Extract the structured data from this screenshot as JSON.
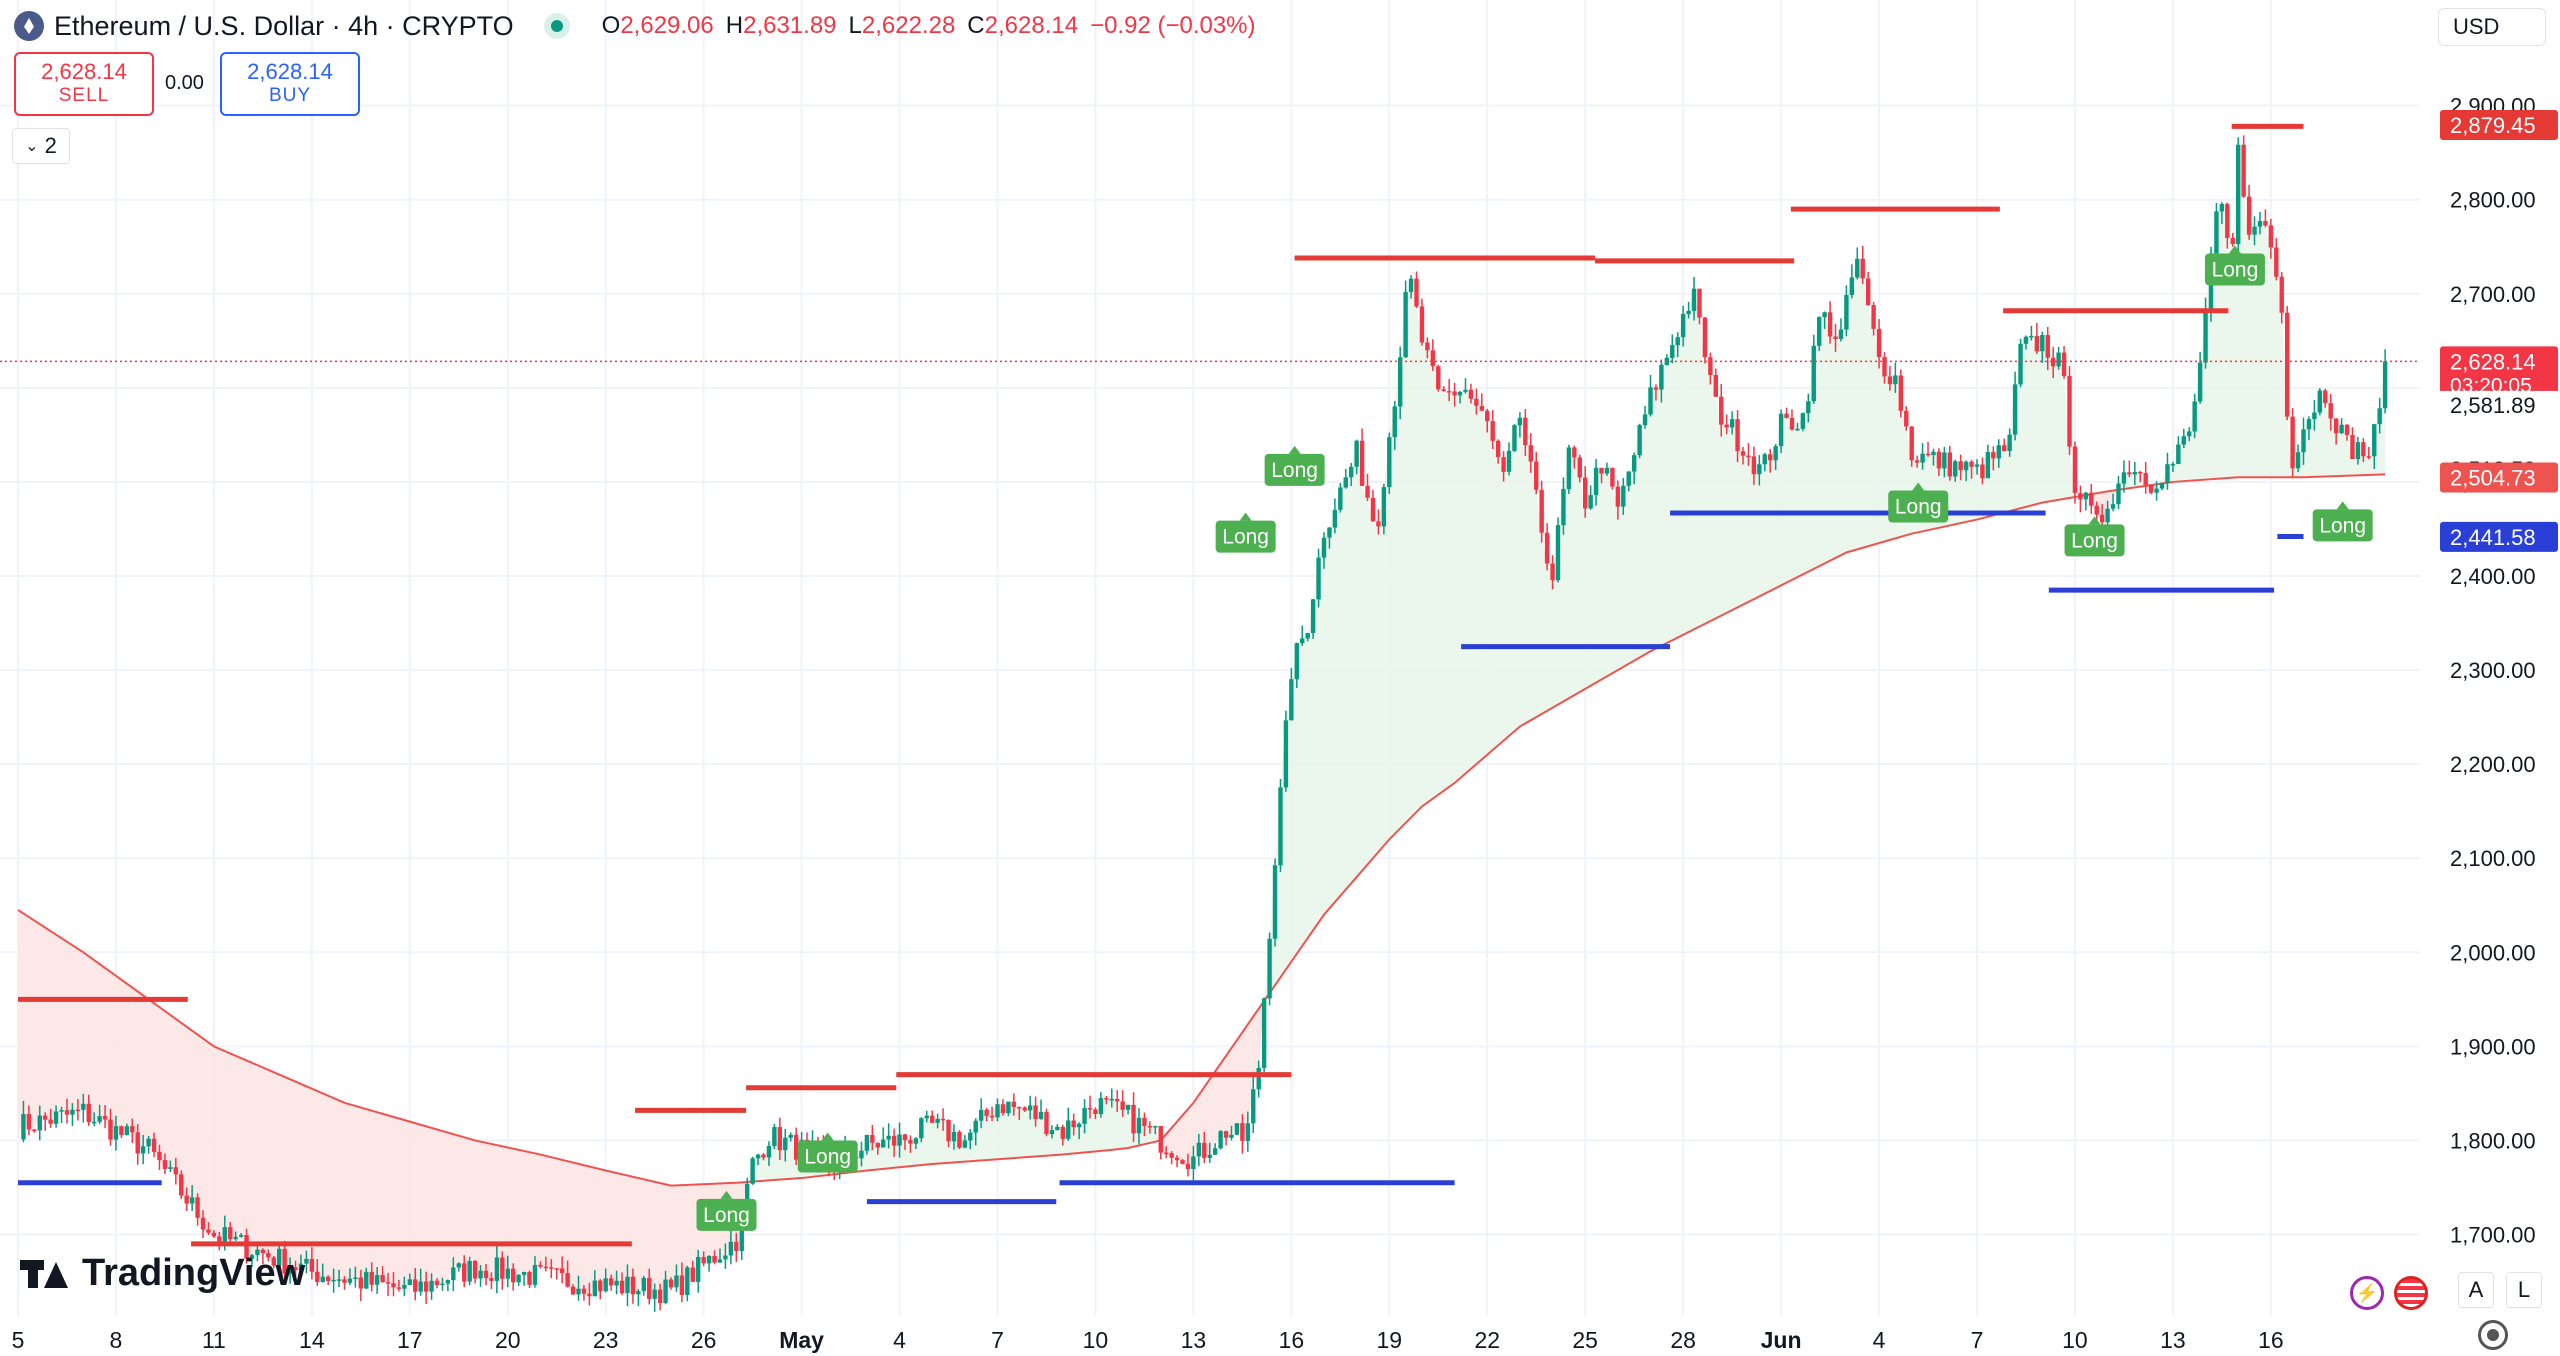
{
  "header": {
    "symbol_title": "Ethereum / U.S. Dollar · 4h · CRYPTO",
    "open_label": "O",
    "open": "2,629.06",
    "high_label": "H",
    "high": "2,631.89",
    "low_label": "L",
    "low": "2,622.28",
    "close_label": "C",
    "close": "2,628.14",
    "change": "−0.92 (−0.03%)"
  },
  "trade": {
    "sell_price": "2,628.14",
    "sell_label": "SELL",
    "spread": "0.00",
    "buy_price": "2,628.14",
    "buy_label": "BUY"
  },
  "indicators_collapse": {
    "count": "2",
    "icon": "chevron-down-icon"
  },
  "currency": "USD",
  "branding": "TradingView",
  "bottom_buttons": {
    "auto": "A",
    "log": "L"
  },
  "colors": {
    "up": "#089981",
    "down": "#f23645",
    "resistance": "#e53935",
    "support": "#2a3fd6",
    "ma": "#ef5350",
    "long_badge": "#4caf50",
    "price_line": "#f23645"
  },
  "chart_data": {
    "type": "candlestick",
    "timeframe": "4h",
    "x_ticks": [
      "5",
      "8",
      "11",
      "14",
      "17",
      "20",
      "23",
      "26",
      "May",
      "4",
      "7",
      "10",
      "13",
      "16",
      "19",
      "22",
      "25",
      "28",
      "Jun",
      "4",
      "7",
      "10",
      "13",
      "16"
    ],
    "y_ticks": [
      "1,700.00",
      "1,800.00",
      "1,900.00",
      "2,000.00",
      "2,100.00",
      "2,200.00",
      "2,300.00",
      "2,400.00",
      "2,500.00",
      "2,600.00",
      "2,700.00",
      "2,800.00",
      "2,900.00"
    ],
    "ylim": [
      1610,
      2930
    ],
    "price_labels": [
      {
        "value": "2,879.45",
        "type": "resistance"
      },
      {
        "value": "2,628.14",
        "type": "last",
        "countdown": "03:20:05"
      },
      {
        "value": "2,581.89",
        "type": "plain"
      },
      {
        "value": "2,513.53",
        "type": "plain"
      },
      {
        "value": "2,504.73",
        "type": "ma"
      },
      {
        "value": "2,441.58",
        "type": "support"
      }
    ],
    "last_price": 2628.14,
    "anchors": [
      [
        0,
        1815
      ],
      [
        2,
        1830
      ],
      [
        4,
        1790
      ],
      [
        6,
        1700
      ],
      [
        9,
        1660
      ],
      [
        12,
        1640
      ],
      [
        14,
        1665
      ],
      [
        17,
        1650
      ],
      [
        20,
        1640
      ],
      [
        22,
        1695
      ],
      [
        22.5,
        1775
      ],
      [
        23,
        1805
      ],
      [
        24,
        1790
      ],
      [
        25,
        1775
      ],
      [
        26,
        1795
      ],
      [
        27,
        1800
      ],
      [
        28,
        1815
      ],
      [
        29,
        1800
      ],
      [
        30,
        1840
      ],
      [
        31,
        1830
      ],
      [
        32,
        1810
      ],
      [
        33,
        1840
      ],
      [
        34,
        1825
      ],
      [
        35,
        1800
      ],
      [
        36,
        1780
      ],
      [
        37,
        1810
      ],
      [
        37.6,
        1800
      ],
      [
        38,
        1880
      ],
      [
        38.5,
        2100
      ],
      [
        39,
        2300
      ],
      [
        39.5,
        2350
      ],
      [
        40,
        2450
      ],
      [
        41,
        2530
      ],
      [
        41.6,
        2450
      ],
      [
        42.2,
        2600
      ],
      [
        42.6,
        2720
      ],
      [
        43,
        2650
      ],
      [
        43.5,
        2590
      ],
      [
        44.3,
        2600
      ],
      [
        45,
        2560
      ],
      [
        45.5,
        2500
      ],
      [
        46,
        2570
      ],
      [
        46.6,
        2460
      ],
      [
        47,
        2400
      ],
      [
        47.5,
        2530
      ],
      [
        48,
        2480
      ],
      [
        48.5,
        2520
      ],
      [
        49,
        2470
      ],
      [
        50,
        2590
      ],
      [
        50.8,
        2660
      ],
      [
        51.3,
        2700
      ],
      [
        52,
        2580
      ],
      [
        52.6,
        2550
      ],
      [
        53.4,
        2510
      ],
      [
        54,
        2560
      ],
      [
        54.7,
        2570
      ],
      [
        55.2,
        2680
      ],
      [
        55.8,
        2650
      ],
      [
        56.3,
        2740
      ],
      [
        57,
        2630
      ],
      [
        57.5,
        2610
      ],
      [
        58,
        2530
      ],
      [
        59,
        2520
      ],
      [
        60,
        2510
      ],
      [
        61,
        2540
      ],
      [
        61.3,
        2640
      ],
      [
        62,
        2650
      ],
      [
        62.6,
        2620
      ],
      [
        63,
        2500
      ],
      [
        63.7,
        2450
      ],
      [
        64,
        2480
      ],
      [
        64.7,
        2520
      ],
      [
        65.3,
        2500
      ],
      [
        66,
        2520
      ],
      [
        66.6,
        2560
      ],
      [
        67,
        2680
      ],
      [
        67.4,
        2800
      ],
      [
        67.8,
        2730
      ],
      [
        68,
        2850
      ],
      [
        68.4,
        2760
      ],
      [
        68.8,
        2780
      ],
      [
        69.3,
        2700
      ],
      [
        69.6,
        2520
      ],
      [
        70,
        2560
      ],
      [
        70.6,
        2600
      ],
      [
        71.3,
        2540
      ],
      [
        72,
        2530
      ],
      [
        72.5,
        2590
      ]
    ],
    "ma_points": [
      [
        0,
        2045
      ],
      [
        2,
        2000
      ],
      [
        4,
        1950
      ],
      [
        6,
        1900
      ],
      [
        8,
        1870
      ],
      [
        10,
        1840
      ],
      [
        12,
        1820
      ],
      [
        14,
        1800
      ],
      [
        16,
        1785
      ],
      [
        18,
        1768
      ],
      [
        20,
        1752
      ],
      [
        22,
        1755
      ],
      [
        24,
        1760
      ],
      [
        26,
        1768
      ],
      [
        28,
        1775
      ],
      [
        30,
        1780
      ],
      [
        32,
        1785
      ],
      [
        33.5,
        1790
      ],
      [
        34,
        1792
      ],
      [
        35,
        1800
      ],
      [
        36,
        1840
      ],
      [
        37,
        1890
      ],
      [
        38,
        1940
      ],
      [
        39,
        1990
      ],
      [
        40,
        2040
      ],
      [
        41,
        2080
      ],
      [
        42,
        2120
      ],
      [
        43,
        2155
      ],
      [
        44,
        2180
      ],
      [
        45,
        2210
      ],
      [
        46,
        2240
      ],
      [
        48,
        2280
      ],
      [
        50,
        2320
      ],
      [
        52,
        2355
      ],
      [
        54,
        2390
      ],
      [
        56,
        2425
      ],
      [
        58,
        2445
      ],
      [
        60,
        2460
      ],
      [
        62,
        2478
      ],
      [
        64,
        2490
      ],
      [
        66,
        2500
      ],
      [
        68,
        2505
      ],
      [
        70,
        2505
      ],
      [
        72.5,
        2508
      ]
    ],
    "levels": [
      {
        "type": "resistance",
        "price": 1950,
        "x0": 0,
        "x1": 5.2
      },
      {
        "type": "resistance",
        "price": 1690,
        "x0": 5.3,
        "x1": 18.8
      },
      {
        "type": "support",
        "price": 1755,
        "x0": 0,
        "x1": 4.4
      },
      {
        "type": "resistance",
        "price": 1832,
        "x0": 18.9,
        "x1": 22.3
      },
      {
        "type": "resistance",
        "price": 1856,
        "x0": 22.3,
        "x1": 26.9
      },
      {
        "type": "resistance",
        "price": 1870,
        "x0": 26.9,
        "x1": 39
      },
      {
        "type": "support",
        "price": 1735,
        "x0": 26,
        "x1": 31.8
      },
      {
        "type": "support",
        "price": 1755,
        "x0": 31.9,
        "x1": 44
      },
      {
        "type": "resistance",
        "price": 2738,
        "x0": 39.1,
        "x1": 48.3
      },
      {
        "type": "resistance",
        "price": 2735,
        "x0": 48.3,
        "x1": 54.4
      },
      {
        "type": "resistance",
        "price": 2790,
        "x0": 54.3,
        "x1": 60.7
      },
      {
        "type": "support",
        "price": 2325,
        "x0": 44.2,
        "x1": 50.6
      },
      {
        "type": "support",
        "price": 2467,
        "x0": 50.6,
        "x1": 62.1
      },
      {
        "type": "resistance",
        "price": 2682,
        "x0": 60.8,
        "x1": 67.7
      },
      {
        "type": "support",
        "price": 2385,
        "x0": 62.2,
        "x1": 69.1
      },
      {
        "type": "resistance",
        "price": 2878,
        "x0": 67.8,
        "x1": 70
      },
      {
        "type": "support",
        "price": 2442,
        "x0": 69.2,
        "x1": 70
      }
    ],
    "long_labels": [
      {
        "text": "Long",
        "x": 21.7,
        "price": 1723
      },
      {
        "text": "Long",
        "x": 24.8,
        "price": 1785
      },
      {
        "text": "Long",
        "x": 37.6,
        "price": 2444
      },
      {
        "text": "Long",
        "x": 39.1,
        "price": 2515
      },
      {
        "text": "Long",
        "x": 58.2,
        "price": 2476
      },
      {
        "text": "Long",
        "x": 63.6,
        "price": 2440
      },
      {
        "text": "Long",
        "x": 67.9,
        "price": 2728
      },
      {
        "text": "Long",
        "x": 71.2,
        "price": 2456
      }
    ]
  }
}
